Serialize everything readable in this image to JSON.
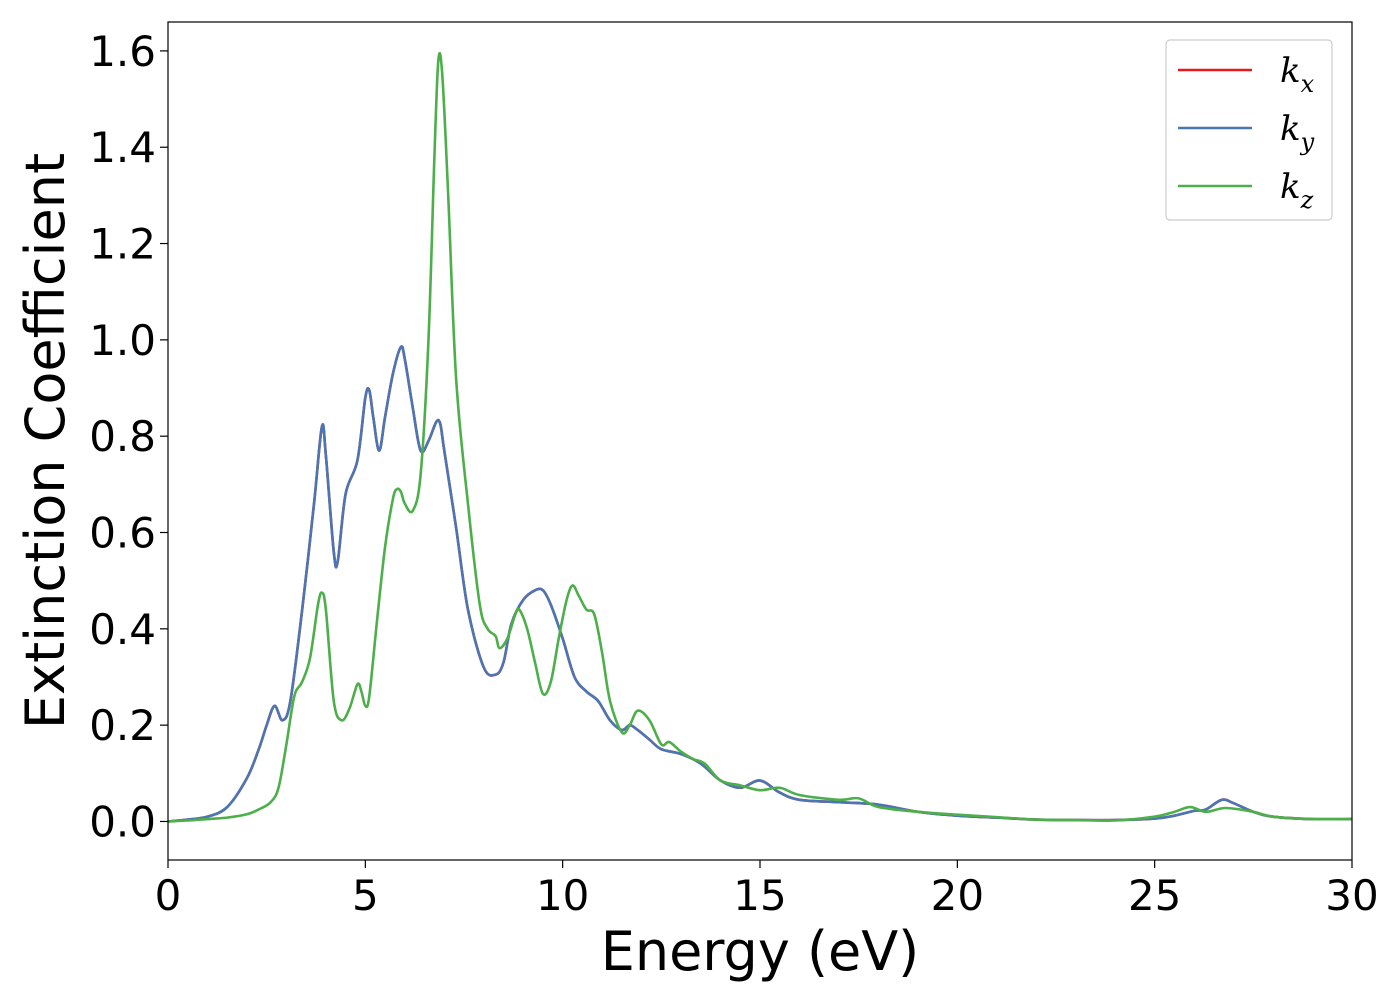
{
  "chart_data": {
    "type": "line",
    "title": "",
    "xlabel": "Energy (eV)",
    "ylabel": "Extinction Coefficient",
    "xlim": [
      0,
      30
    ],
    "ylim": [
      -0.08,
      1.66
    ],
    "x_ticks": [
      0,
      5,
      10,
      15,
      20,
      25,
      30
    ],
    "x_tick_labels": [
      "0",
      "5",
      "10",
      "15",
      "20",
      "25",
      "30"
    ],
    "y_ticks": [
      0.0,
      0.2,
      0.4,
      0.6,
      0.8,
      1.0,
      1.2,
      1.4,
      1.6
    ],
    "y_tick_labels": [
      "0.0",
      "0.2",
      "0.4",
      "0.6",
      "0.8",
      "1.0",
      "1.2",
      "1.4",
      "1.6"
    ],
    "grid": false,
    "legend_position": "top-right",
    "series": [
      {
        "name": "k",
        "subscript": "x",
        "color": "#e41a1c",
        "x": [
          0,
          0.5,
          1.0,
          1.5,
          2.0,
          2.3,
          2.5,
          2.7,
          2.9,
          3.1,
          3.4,
          3.7,
          3.9,
          4.0,
          4.2,
          4.3,
          4.5,
          4.8,
          5.0,
          5.1,
          5.2,
          5.35,
          5.5,
          5.7,
          5.9,
          6.0,
          6.2,
          6.4,
          6.6,
          6.8,
          6.9,
          7.0,
          7.3,
          7.6,
          8.0,
          8.3,
          8.5,
          8.7,
          9.0,
          9.3,
          9.5,
          9.7,
          10.0,
          10.3,
          10.6,
          10.9,
          11.2,
          11.5,
          11.7,
          11.9,
          12.2,
          12.5,
          13.0,
          13.5,
          14.0,
          14.5,
          15.0,
          15.5,
          16.0,
          17.0,
          18.0,
          19.0,
          20.0,
          21.0,
          22.0,
          23.0,
          24.0,
          25.0,
          25.5,
          26.0,
          26.3,
          26.7,
          27.0,
          27.5,
          28.0,
          29.0,
          30.0
        ],
        "values": [
          0.0,
          0.004,
          0.01,
          0.03,
          0.09,
          0.15,
          0.2,
          0.24,
          0.21,
          0.25,
          0.44,
          0.66,
          0.82,
          0.76,
          0.56,
          0.54,
          0.68,
          0.75,
          0.88,
          0.895,
          0.84,
          0.77,
          0.84,
          0.93,
          0.985,
          0.96,
          0.86,
          0.77,
          0.79,
          0.83,
          0.825,
          0.77,
          0.61,
          0.44,
          0.32,
          0.305,
          0.33,
          0.41,
          0.46,
          0.48,
          0.48,
          0.45,
          0.38,
          0.3,
          0.27,
          0.25,
          0.21,
          0.19,
          0.2,
          0.19,
          0.17,
          0.15,
          0.14,
          0.12,
          0.085,
          0.07,
          0.085,
          0.06,
          0.045,
          0.04,
          0.035,
          0.02,
          0.012,
          0.008,
          0.004,
          0.003,
          0.003,
          0.006,
          0.012,
          0.022,
          0.025,
          0.045,
          0.038,
          0.02,
          0.01,
          0.005,
          0.005
        ]
      },
      {
        "name": "k",
        "subscript": "y",
        "color": "#4a76b4",
        "x": [
          0,
          0.5,
          1.0,
          1.5,
          2.0,
          2.3,
          2.5,
          2.7,
          2.9,
          3.1,
          3.4,
          3.7,
          3.9,
          4.0,
          4.2,
          4.3,
          4.5,
          4.8,
          5.0,
          5.1,
          5.2,
          5.35,
          5.5,
          5.7,
          5.9,
          6.0,
          6.2,
          6.4,
          6.6,
          6.8,
          6.9,
          7.0,
          7.3,
          7.6,
          8.0,
          8.3,
          8.5,
          8.7,
          9.0,
          9.3,
          9.5,
          9.7,
          10.0,
          10.3,
          10.6,
          10.9,
          11.2,
          11.5,
          11.7,
          11.9,
          12.2,
          12.5,
          13.0,
          13.5,
          14.0,
          14.5,
          15.0,
          15.5,
          16.0,
          17.0,
          18.0,
          19.0,
          20.0,
          21.0,
          22.0,
          23.0,
          24.0,
          25.0,
          25.5,
          26.0,
          26.3,
          26.7,
          27.0,
          27.5,
          28.0,
          29.0,
          30.0
        ],
        "values": [
          0.0,
          0.004,
          0.01,
          0.03,
          0.09,
          0.15,
          0.2,
          0.24,
          0.21,
          0.25,
          0.44,
          0.66,
          0.82,
          0.76,
          0.56,
          0.54,
          0.68,
          0.75,
          0.88,
          0.895,
          0.84,
          0.77,
          0.84,
          0.93,
          0.985,
          0.96,
          0.86,
          0.77,
          0.79,
          0.83,
          0.825,
          0.77,
          0.61,
          0.44,
          0.32,
          0.305,
          0.33,
          0.41,
          0.46,
          0.48,
          0.48,
          0.45,
          0.38,
          0.3,
          0.27,
          0.25,
          0.21,
          0.19,
          0.2,
          0.19,
          0.17,
          0.15,
          0.14,
          0.12,
          0.085,
          0.07,
          0.085,
          0.06,
          0.045,
          0.04,
          0.035,
          0.02,
          0.012,
          0.008,
          0.004,
          0.003,
          0.003,
          0.006,
          0.012,
          0.022,
          0.025,
          0.045,
          0.038,
          0.02,
          0.01,
          0.005,
          0.005
        ]
      },
      {
        "name": "k",
        "subscript": "z",
        "color": "#4daf4a",
        "x": [
          0,
          0.5,
          1.0,
          1.5,
          2.0,
          2.3,
          2.6,
          2.8,
          3.0,
          3.2,
          3.4,
          3.6,
          3.8,
          3.9,
          4.0,
          4.2,
          4.4,
          4.6,
          4.8,
          4.9,
          5.0,
          5.1,
          5.3,
          5.5,
          5.7,
          5.8,
          5.9,
          6.0,
          6.2,
          6.4,
          6.6,
          6.75,
          6.85,
          6.95,
          7.1,
          7.3,
          7.6,
          7.9,
          8.1,
          8.3,
          8.4,
          8.6,
          8.8,
          8.9,
          9.1,
          9.3,
          9.5,
          9.7,
          9.9,
          10.1,
          10.25,
          10.4,
          10.6,
          10.8,
          11.0,
          11.2,
          11.5,
          11.7,
          11.9,
          12.2,
          12.5,
          12.7,
          13.0,
          13.3,
          13.6,
          14.0,
          14.5,
          15.0,
          15.5,
          16.0,
          17.0,
          17.5,
          18.0,
          19.0,
          20.0,
          21.0,
          22.0,
          23.0,
          24.0,
          25.0,
          25.5,
          25.9,
          26.3,
          26.8,
          27.5,
          28.0,
          29.0,
          30.0
        ],
        "values": [
          0.0,
          0.002,
          0.005,
          0.008,
          0.015,
          0.025,
          0.04,
          0.07,
          0.16,
          0.26,
          0.29,
          0.34,
          0.45,
          0.475,
          0.44,
          0.25,
          0.21,
          0.235,
          0.285,
          0.27,
          0.24,
          0.26,
          0.42,
          0.57,
          0.67,
          0.69,
          0.685,
          0.66,
          0.645,
          0.72,
          1.0,
          1.38,
          1.58,
          1.55,
          1.3,
          0.92,
          0.66,
          0.45,
          0.4,
          0.385,
          0.36,
          0.38,
          0.43,
          0.44,
          0.4,
          0.33,
          0.265,
          0.29,
          0.38,
          0.46,
          0.49,
          0.47,
          0.44,
          0.43,
          0.35,
          0.25,
          0.185,
          0.2,
          0.23,
          0.21,
          0.16,
          0.165,
          0.145,
          0.13,
          0.12,
          0.085,
          0.075,
          0.065,
          0.07,
          0.055,
          0.045,
          0.048,
          0.03,
          0.02,
          0.014,
          0.009,
          0.004,
          0.003,
          0.002,
          0.01,
          0.02,
          0.03,
          0.02,
          0.028,
          0.02,
          0.01,
          0.005,
          0.005
        ]
      }
    ]
  }
}
